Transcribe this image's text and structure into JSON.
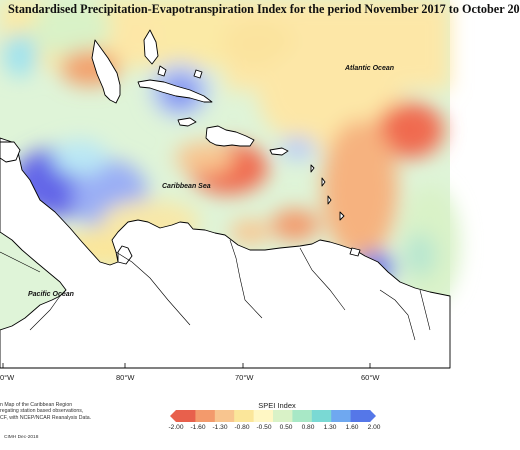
{
  "map": {
    "title": "Standardised Precipitation-Evapotranspiration Index for the period November 2017 to October 20",
    "labels": {
      "atlantic": "Atlantic Ocean",
      "caribbean": "Caribbean Sea",
      "pacific": "Pacific Ocean"
    },
    "longitude_ticks": [
      "0°W",
      "80°W",
      "70°W",
      "60°W"
    ],
    "caption_text": "n Map of the Caribbean Region\nregating station based observations,\nCF, with NCEP/NCAR Reanalysis Data.",
    "credit": "CIMH Dec-2018"
  },
  "legend": {
    "title": "SPEI Index",
    "ticks": [
      "-2.00",
      "-1.60",
      "-1.30",
      "-0.80",
      "-0.50",
      "0.50",
      "0.80",
      "1.30",
      "1.60",
      "2.00"
    ],
    "colors": [
      "#e8604c",
      "#f39a6c",
      "#f8c58f",
      "#fbe69a",
      "#fff7c4",
      "#d9f2c7",
      "#a8e8c6",
      "#7ad9d4",
      "#6fa8f0",
      "#5577e8"
    ]
  },
  "colors": {
    "wet_strong": "#5f60e8",
    "wet_light": "#9fb2f5",
    "neutral": "#dff4d8",
    "dry_light": "#fde7a7",
    "dry_strong": "#f06b4f",
    "land": "#ffffff",
    "coast": "#000000"
  }
}
